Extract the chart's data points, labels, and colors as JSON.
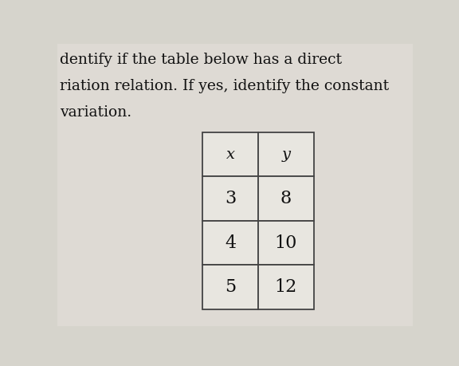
{
  "title_lines": [
    "dentify if the table below has a direct",
    "riation relation. If yes, identify the constant",
    "variation."
  ],
  "col_headers": [
    "x",
    "y"
  ],
  "table_data": [
    [
      "3",
      "8"
    ],
    [
      "4",
      "10"
    ],
    [
      "5",
      "12"
    ]
  ],
  "bg_color": "#d6d4cc",
  "paper_color": "#e8e6e0",
  "table_bg": "#e8e6e0",
  "border_color": "#444444",
  "text_color": "#111111",
  "title_fontsize": 13.5,
  "table_fontsize": 16,
  "header_fontsize": 14
}
